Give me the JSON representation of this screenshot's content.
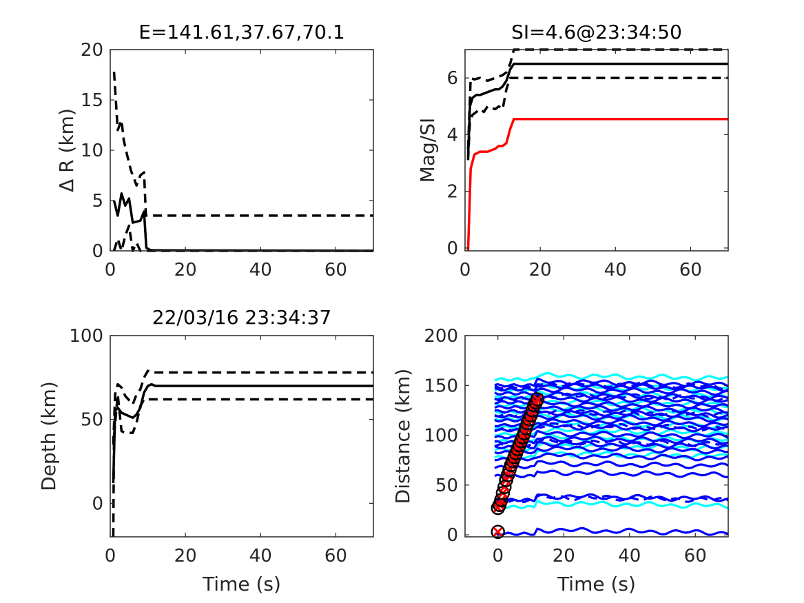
{
  "chart_data": [
    {
      "id": "dr",
      "type": "line",
      "title": "E=141.61,37.67,70.1",
      "xlabel": "",
      "ylabel": "Δ R (km)",
      "xlim": [
        0,
        70
      ],
      "ylim": [
        0,
        20
      ],
      "xticks": [
        0,
        20,
        40,
        60
      ],
      "yticks": [
        0,
        5,
        10,
        15,
        20
      ],
      "grid": false,
      "series": [
        {
          "color": "#000000",
          "style": "dashed",
          "x": [
            1,
            2,
            3,
            3.6,
            4.5,
            5.5,
            7,
            8,
            9,
            9.5,
            70
          ],
          "y": [
            17.8,
            12,
            13,
            11,
            9.5,
            8,
            6.5,
            7.5,
            7.8,
            3.5,
            3.5
          ]
        },
        {
          "color": "#000000",
          "style": "solid",
          "x": [
            1,
            2,
            3,
            4,
            5,
            6,
            7,
            8,
            9,
            9.6,
            10.5,
            11.5,
            70
          ],
          "y": [
            5,
            3.5,
            5.7,
            4.5,
            5.2,
            2.8,
            2.9,
            3,
            3.9,
            0.3,
            0.1,
            0.05,
            0
          ]
        },
        {
          "color": "#000000",
          "style": "dashed",
          "x": [
            1,
            2,
            3,
            4,
            5,
            6,
            7,
            8,
            9,
            10,
            70
          ],
          "y": [
            0,
            1.2,
            -0.1,
            1.5,
            2.5,
            0,
            0.8,
            0,
            -0.2,
            0,
            0
          ]
        }
      ]
    },
    {
      "id": "mag",
      "type": "line",
      "title": "SI=4.6@23:34:50",
      "xlabel": "",
      "ylabel": "Mag/SI",
      "xlim": [
        0,
        70
      ],
      "ylim": [
        -0.1,
        7
      ],
      "xticks": [
        0,
        20,
        40,
        60
      ],
      "yticks": [
        0,
        2,
        4,
        6
      ],
      "grid": false,
      "series": [
        {
          "color": "#000000",
          "style": "dashed",
          "x": [
            0.8,
            1.5,
            2.5,
            4,
            6,
            8,
            10,
            11,
            12,
            13,
            70
          ],
          "y": [
            3.5,
            6,
            5.95,
            6,
            5.9,
            6,
            6.1,
            6.2,
            6.5,
            7,
            7
          ]
        },
        {
          "color": "#000000",
          "style": "solid",
          "x": [
            0.8,
            1.3,
            2,
            3,
            4,
            6,
            8,
            9,
            10,
            11,
            12,
            13,
            70
          ],
          "y": [
            3.2,
            5,
            5.3,
            5.4,
            5.4,
            5.5,
            5.6,
            5.6,
            5.7,
            5.9,
            6.3,
            6.5,
            6.5
          ]
        },
        {
          "color": "#000000",
          "style": "dashed",
          "x": [
            0.8,
            1.3,
            2,
            3,
            4,
            5,
            6,
            8,
            9,
            10,
            11,
            12,
            13,
            70
          ],
          "y": [
            3.1,
            4.5,
            4.7,
            4.8,
            4.9,
            4.8,
            5,
            4.9,
            5,
            4.9,
            5.6,
            6,
            6,
            6
          ]
        },
        {
          "color": "#ff0000",
          "style": "solid",
          "x": [
            0.8,
            1.5,
            2.5,
            4,
            6,
            8,
            9,
            10,
            11,
            12,
            13,
            70
          ],
          "y": [
            -0.1,
            2.8,
            3.3,
            3.4,
            3.4,
            3.5,
            3.6,
            3.6,
            3.7,
            4.2,
            4.55,
            4.55
          ]
        }
      ]
    },
    {
      "id": "depth",
      "type": "line",
      "title": "22/03/16 23:34:37",
      "xlabel": "Time (s)",
      "ylabel": "Depth (km)",
      "xlim": [
        0,
        70
      ],
      "ylim": [
        -20,
        100
      ],
      "xticks": [
        0,
        20,
        40,
        60
      ],
      "yticks": [
        0,
        50,
        100
      ],
      "grid": false,
      "series": [
        {
          "color": "#000000",
          "style": "dashed",
          "x": [
            0.8,
            1.3,
            2,
            3,
            4,
            6,
            7,
            8,
            9,
            10,
            11,
            70
          ],
          "y": [
            35,
            65,
            71,
            69,
            64,
            59,
            65,
            68,
            75,
            79,
            78,
            78
          ]
        },
        {
          "color": "#000000",
          "style": "solid",
          "x": [
            0.8,
            1.3,
            2,
            3,
            4,
            5,
            6,
            7,
            8,
            9,
            10,
            11,
            12,
            70
          ],
          "y": [
            12,
            55,
            57,
            54,
            53,
            52,
            51,
            53,
            57,
            66,
            70,
            71,
            70,
            70
          ]
        },
        {
          "color": "#000000",
          "style": "dashed",
          "x": [
            0.8,
            1,
            2,
            3,
            4,
            5,
            6,
            7,
            8,
            9,
            10,
            70
          ],
          "y": [
            -20,
            40,
            65,
            43,
            42,
            42,
            42,
            48,
            58,
            62,
            62,
            62
          ]
        }
      ]
    },
    {
      "id": "dist",
      "type": "line",
      "title": "",
      "xlabel": "Time (s)",
      "ylabel": "Distance (km)",
      "xlim": [
        -10,
        70
      ],
      "ylim": [
        -2,
        200
      ],
      "xticks": [
        0,
        20,
        40,
        60
      ],
      "yticks": [
        0,
        50,
        100,
        150,
        200
      ],
      "grid": false,
      "traces": {
        "cyan": "#00ffff",
        "blue": "#0000ff",
        "cyan_levels": [
          158,
          147,
          140,
          132,
          125,
          118,
          110,
          103,
          96,
          88,
          80,
          30
        ],
        "blue_levels": [
          152,
          148,
          144,
          139,
          135,
          130,
          126,
          121,
          117,
          112,
          107,
          100,
          95,
          90,
          85,
          78,
          70,
          61,
          37,
          3
        ],
        "dashed_blue_levels": [
          150,
          138,
          122,
          108,
          92,
          36
        ]
      },
      "picks": {
        "marker": "red x in black circle",
        "x": [
          0,
          0,
          0.5,
          1,
          1.5,
          2,
          2.5,
          3,
          3.5,
          4,
          4.5,
          5,
          5.5,
          6,
          6.5,
          7,
          7.5,
          8,
          8.5,
          9,
          9.5,
          10,
          10.5,
          11,
          11.5,
          12
        ],
        "y": [
          3,
          27,
          30,
          35,
          42,
          48,
          55,
          60,
          65,
          70,
          74,
          78,
          82,
          86,
          90,
          94,
          98,
          102,
          107,
          112,
          116,
          120,
          125,
          130,
          133,
          136
        ]
      }
    }
  ]
}
